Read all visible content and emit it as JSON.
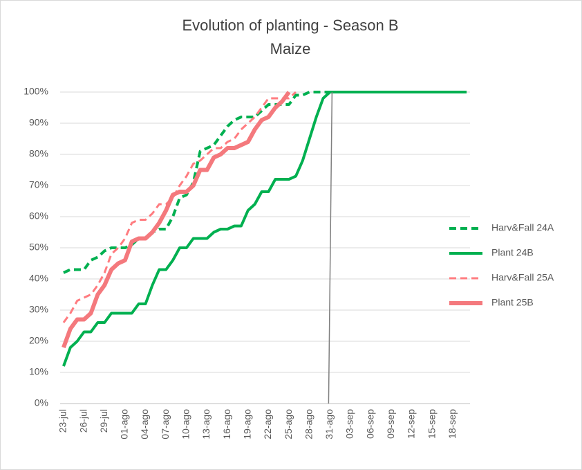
{
  "chart_data": {
    "type": "line",
    "title": "Evolution of planting - Season B",
    "subtitle": "Maize",
    "categories": [
      "23-jul",
      null,
      null,
      "26-jul",
      null,
      null,
      "29-jul",
      null,
      null,
      "01-ago",
      null,
      null,
      "04-ago",
      null,
      null,
      "07-ago",
      null,
      null,
      "10-ago",
      null,
      null,
      "13-ago",
      null,
      null,
      "16-ago",
      null,
      null,
      "19-ago",
      null,
      null,
      "22-ago",
      null,
      null,
      "25-ago",
      null,
      null,
      "28-ago",
      null,
      null,
      "31-ago",
      null,
      null,
      "03-sep",
      null,
      null,
      "06-sep",
      null,
      null,
      "09-sep",
      null,
      null,
      "12-sep",
      null,
      null,
      "15-sep",
      null,
      null,
      "18-sep",
      null,
      null
    ],
    "series": [
      {
        "name": "Harv&Fall 24A",
        "color": "#00b050",
        "line_style": "dashed",
        "line_width": 4,
        "values": [
          42,
          43,
          43,
          43,
          46,
          47,
          49,
          50,
          50,
          50,
          51,
          53,
          53,
          55,
          56,
          56,
          60,
          66,
          67,
          71,
          81,
          82,
          83,
          86,
          89,
          91,
          92,
          92,
          92,
          94,
          96,
          96,
          96,
          96,
          99,
          99,
          100,
          100,
          100,
          100,
          null,
          null,
          null,
          null,
          null,
          null,
          null,
          null,
          null,
          null,
          null,
          null,
          null,
          null,
          null,
          null,
          null,
          null,
          null,
          null
        ]
      },
      {
        "name": "Plant 24B",
        "color": "#00b050",
        "line_style": "solid",
        "line_width": 4,
        "values": [
          12,
          18,
          20,
          23,
          23,
          26,
          26,
          29,
          29,
          29,
          29,
          32,
          32,
          38,
          43,
          43,
          46,
          50,
          50,
          53,
          53,
          53,
          55,
          56,
          56,
          57,
          57,
          62,
          64,
          68,
          68,
          72,
          72,
          72,
          73,
          78,
          85,
          92,
          98,
          100,
          100,
          100,
          100,
          100,
          100,
          100,
          100,
          100,
          100,
          100,
          100,
          100,
          100,
          100,
          100,
          100,
          100,
          100,
          100,
          100
        ]
      },
      {
        "name": "Harv&Fall 25A",
        "color": "#ff7c80",
        "line_style": "dashed",
        "line_width": 3,
        "values": [
          26,
          29,
          33,
          34,
          35,
          38,
          42,
          48,
          50,
          53,
          58,
          59,
          59,
          61,
          64,
          64,
          66,
          70,
          73,
          77,
          78,
          80,
          82,
          82,
          84,
          85,
          88,
          90,
          92,
          95,
          98,
          98,
          98,
          98,
          100,
          null,
          null,
          null,
          null,
          null,
          null,
          null,
          null,
          null,
          null,
          null,
          null,
          null,
          null,
          null,
          null,
          null,
          null,
          null,
          null,
          null,
          null,
          null,
          null,
          null
        ]
      },
      {
        "name": "Plant 25B",
        "color": "#f4797d",
        "line_style": "solid",
        "line_width": 6,
        "values": [
          18,
          24,
          27,
          27,
          29,
          35,
          38,
          43,
          45,
          46,
          52,
          53,
          53,
          55,
          58,
          62,
          67,
          68,
          68,
          70,
          75,
          75,
          79,
          80,
          82,
          82,
          83,
          84,
          88,
          91,
          92,
          95,
          97,
          100,
          null,
          null,
          null,
          null,
          null,
          null,
          null,
          null,
          null,
          null,
          null,
          null,
          null,
          null,
          null,
          null,
          null,
          null,
          null,
          null,
          null,
          null,
          null,
          null,
          null,
          null
        ]
      }
    ],
    "ylim": [
      0,
      100
    ],
    "yticks": [
      {
        "value": 0,
        "label": "0%"
      },
      {
        "value": 10,
        "label": "10%"
      },
      {
        "value": 20,
        "label": "20%"
      },
      {
        "value": 30,
        "label": "30%"
      },
      {
        "value": 40,
        "label": "40%"
      },
      {
        "value": 50,
        "label": "50%"
      },
      {
        "value": 60,
        "label": "60%"
      },
      {
        "value": 70,
        "label": "70%"
      },
      {
        "value": 80,
        "label": "80%"
      },
      {
        "value": 90,
        "label": "90%"
      },
      {
        "value": 100,
        "label": "100%"
      }
    ],
    "grid": true,
    "legend": "right",
    "reference_line": {
      "category": "31-ago",
      "color": "#7f7f7f"
    }
  }
}
